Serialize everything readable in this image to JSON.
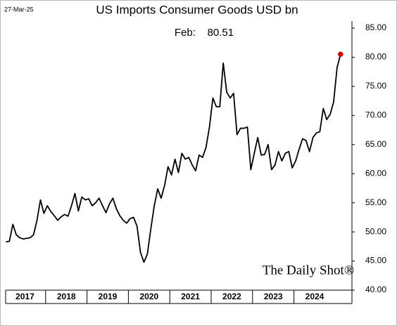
{
  "chart_data": {
    "type": "line",
    "title": "US Imports Consumer Goods USD bn",
    "date_label": "27-Mar-25",
    "annotation": "Feb:    80.51",
    "watermark": "The Daily Shot®",
    "categories": [
      "2017",
      null,
      null,
      null,
      null,
      null,
      null,
      null,
      null,
      null,
      null,
      null,
      "2018",
      null,
      null,
      null,
      null,
      null,
      null,
      null,
      null,
      null,
      null,
      null,
      "2019",
      null,
      null,
      null,
      null,
      null,
      null,
      null,
      null,
      null,
      null,
      null,
      "2020",
      null,
      null,
      null,
      null,
      null,
      null,
      null,
      null,
      null,
      null,
      null,
      "2021",
      null,
      null,
      null,
      null,
      null,
      null,
      null,
      null,
      null,
      null,
      null,
      "2022",
      null,
      null,
      null,
      null,
      null,
      null,
      null,
      null,
      null,
      null,
      null,
      "2023",
      null,
      null,
      null,
      null,
      null,
      null,
      null,
      null,
      null,
      null,
      null,
      "2024",
      null,
      null,
      null,
      null,
      null,
      null,
      null,
      null,
      null,
      null,
      null,
      null,
      null
    ],
    "series": [
      {
        "name": "US Imports Consumer Goods",
        "color": "#000000",
        "values": [
          48.3,
          48.4,
          51.3,
          49.5,
          49.0,
          48.8,
          48.9,
          49.0,
          49.5,
          52.0,
          55.5,
          53.2,
          54.5,
          53.5,
          52.8,
          52.0,
          52.6,
          53.0,
          52.7,
          54.5,
          56.6,
          53.6,
          56.0,
          55.5,
          55.7,
          54.5,
          55.0,
          55.8,
          54.5,
          53.3,
          54.8,
          55.8,
          54.0,
          52.8,
          52.0,
          51.5,
          52.3,
          52.5,
          51.0,
          46.5,
          44.8,
          46.2,
          50.5,
          54.5,
          57.4,
          55.8,
          58.0,
          61.2,
          59.8,
          62.5,
          60.2,
          63.5,
          62.5,
          62.8,
          61.5,
          60.5,
          63.2,
          62.8,
          64.5,
          68.0,
          73.0,
          71.5,
          71.5,
          79.0,
          74.0,
          73.0,
          73.8,
          66.7,
          67.8,
          67.8,
          68.0,
          60.7,
          63.5,
          66.2,
          63.2,
          63.3,
          65.0,
          60.7,
          61.5,
          63.8,
          62.2,
          63.5,
          63.8,
          61.0,
          62.2,
          64.2,
          66.0,
          65.7,
          63.8,
          66.2,
          67.0,
          67.2,
          71.2,
          69.3,
          70.2,
          72.3,
          78.2,
          80.51
        ]
      }
    ],
    "last_point_color": "#e00000",
    "ylim": [
      40,
      85
    ],
    "yticks": [
      {
        "value": 40,
        "label": "40.00"
      },
      {
        "value": 45,
        "label": "45.00"
      },
      {
        "value": 50,
        "label": "50.00"
      },
      {
        "value": 55,
        "label": "55.00"
      },
      {
        "value": 60,
        "label": "60.00"
      },
      {
        "value": 65,
        "label": "65.00"
      },
      {
        "value": 70,
        "label": "70.00"
      },
      {
        "value": 75,
        "label": "75.00"
      },
      {
        "value": 80,
        "label": "80.00"
      },
      {
        "value": 85,
        "label": "85.00"
      }
    ]
  }
}
